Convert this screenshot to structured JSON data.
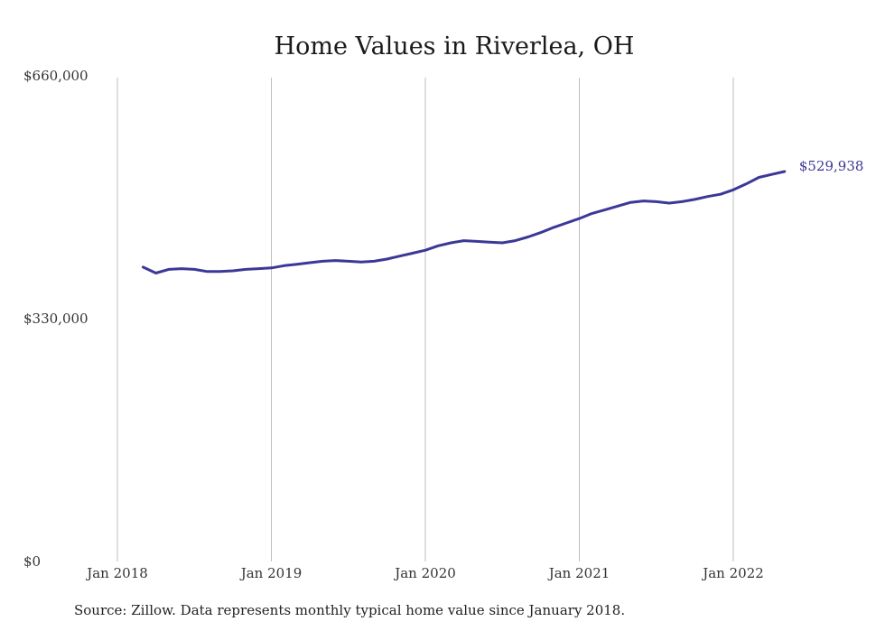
{
  "chart_data": {
    "type": "line",
    "title": "Home Values in Riverlea, OH",
    "ylim": [
      0,
      660000
    ],
    "y_ticks": [
      "$0",
      "$330,000",
      "$660,000"
    ],
    "y_tick_values": [
      0,
      330000,
      660000
    ],
    "x_ticks": [
      "Jan 2018",
      "Jan 2019",
      "Jan 2020",
      "Jan 2021",
      "Jan 2022"
    ],
    "x_tick_dates": [
      "2018-01",
      "2019-01",
      "2020-01",
      "2021-01",
      "2022-01"
    ],
    "grid": "vertical",
    "series": [
      {
        "color": "#3b3897",
        "end_label": "$529,938",
        "x": [
          "2018-03",
          "2018-04",
          "2018-05",
          "2018-06",
          "2018-07",
          "2018-08",
          "2018-09",
          "2018-10",
          "2018-11",
          "2018-12",
          "2019-01",
          "2019-02",
          "2019-03",
          "2019-04",
          "2019-05",
          "2019-06",
          "2019-07",
          "2019-08",
          "2019-09",
          "2019-10",
          "2019-11",
          "2019-12",
          "2020-01",
          "2020-02",
          "2020-03",
          "2020-04",
          "2020-05",
          "2020-06",
          "2020-07",
          "2020-08",
          "2020-09",
          "2020-10",
          "2020-11",
          "2020-12",
          "2021-01",
          "2021-02",
          "2021-03",
          "2021-04",
          "2021-05",
          "2021-06",
          "2021-07",
          "2021-08",
          "2021-09",
          "2021-10",
          "2021-11",
          "2021-12",
          "2022-01",
          "2022-02",
          "2022-03",
          "2022-04",
          "2022-05"
        ],
        "values": [
          400000,
          392000,
          397000,
          398000,
          397000,
          394000,
          394000,
          395000,
          397000,
          398000,
          399000,
          402000,
          404000,
          406000,
          408000,
          409000,
          408000,
          407000,
          408000,
          411000,
          415000,
          419000,
          423000,
          429000,
          433000,
          436000,
          435000,
          434000,
          433000,
          436000,
          441000,
          447000,
          454000,
          460000,
          466000,
          473000,
          478000,
          483000,
          488000,
          490000,
          489000,
          487000,
          489000,
          492000,
          496000,
          499000,
          505000,
          513000,
          522000,
          526000,
          529938
        ]
      }
    ]
  },
  "source_note": "Source: Zillow. Data represents monthly typical home value since January 2018."
}
